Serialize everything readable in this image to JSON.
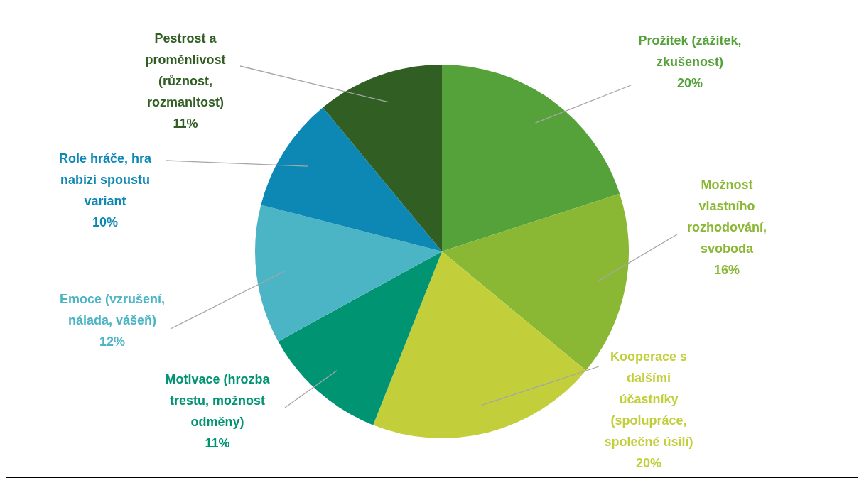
{
  "chart_data": {
    "type": "pie",
    "categories": [
      "Prožitek (zážitek, zkušenost)",
      "Možnost vlastního rozhodování, svoboda",
      "Kooperace s dalšími účastníky (spolupráce, společné úsilí)",
      "Motivace (hrozba trestu, možnost odměny)",
      "Emoce (vzrušení, nálada, vášeň)",
      "Role hráče, hra nabízí spoustu variant",
      "Pestrost a proměnlivost (různost, rozmanitost)"
    ],
    "values": [
      20,
      16,
      20,
      11,
      12,
      10,
      11
    ],
    "value_labels": [
      "20%",
      "16%",
      "20%",
      "11%",
      "12%",
      "10%",
      "11%"
    ],
    "colors": [
      "#55a13a",
      "#8ab834",
      "#c2cf3b",
      "#009473",
      "#4bb5c6",
      "#0d88b5",
      "#315f23"
    ]
  }
}
